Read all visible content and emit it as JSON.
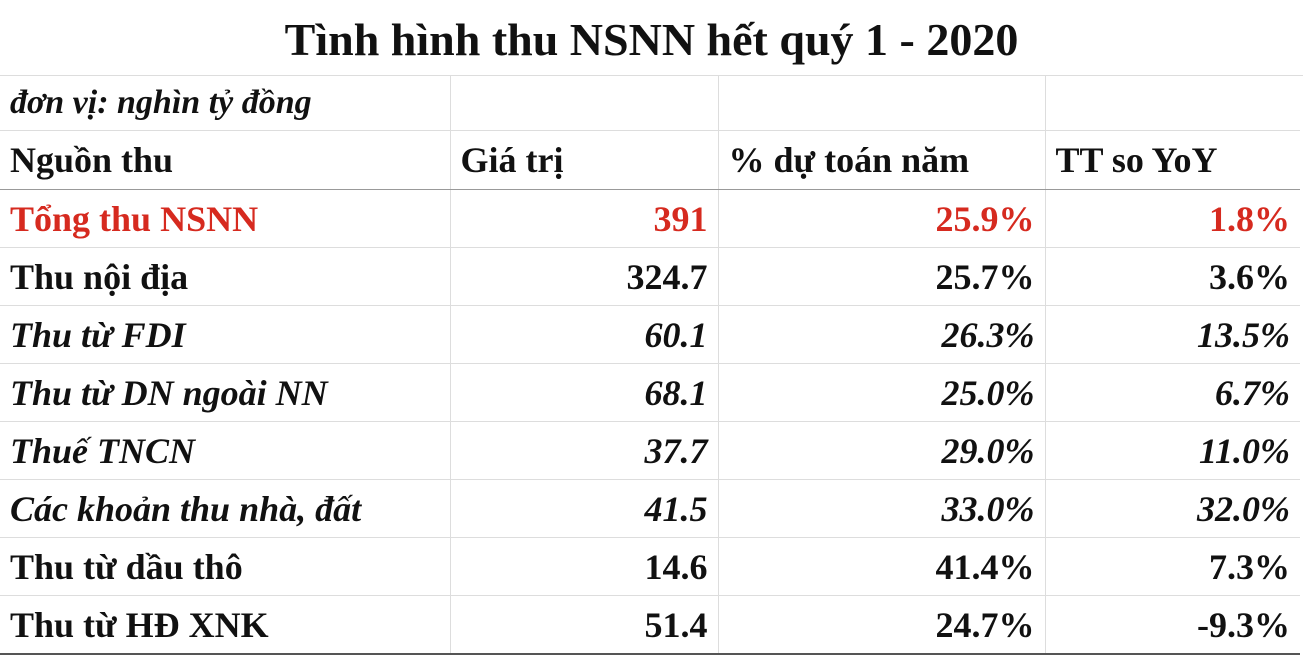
{
  "title": "Tình hình thu NSNN hết quý 1 - 2020",
  "unit": "đơn vị: nghìn tỷ đồng",
  "table": {
    "header": [
      "Nguồn thu",
      "Giá trị",
      "% dự toán năm",
      "TT so YoY"
    ],
    "rows": [
      [
        "Tổng thu NSNN",
        "391",
        "25.9%",
        "1.8%"
      ],
      [
        "Thu nội địa",
        "324.7",
        "25.7%",
        "3.6%"
      ],
      [
        "Thu từ FDI",
        "60.1",
        "26.3%",
        "13.5%"
      ],
      [
        "Thu từ DN ngoài NN",
        "68.1",
        "25.0%",
        "6.7%"
      ],
      [
        "Thuế TNCN",
        "37.7",
        "29.0%",
        "11.0%"
      ],
      [
        "Các khoản thu nhà, đất",
        "41.5",
        "33.0%",
        "32.0%"
      ],
      [
        "Thu từ dầu thô",
        "14.6",
        "41.4%",
        "7.3%"
      ],
      [
        "Thu từ HĐ XNK",
        "51.4",
        "24.7%",
        "-9.3%"
      ]
    ]
  }
}
